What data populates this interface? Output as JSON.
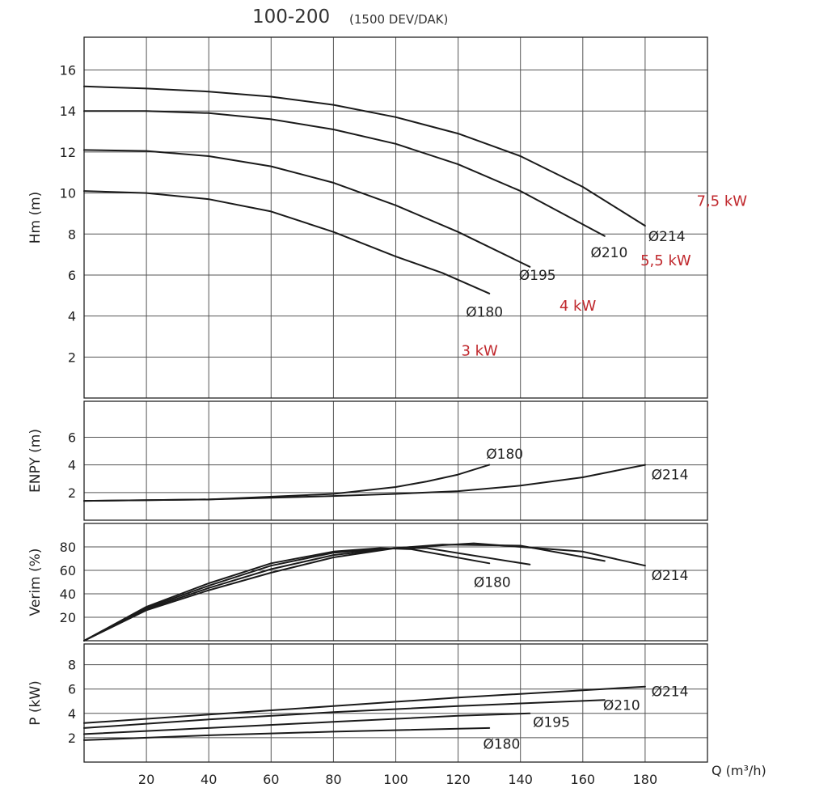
{
  "chart_data": {
    "type": "line",
    "title": "100-200",
    "subtitle": "(1500 DEV/DAK)",
    "xlabel": "Q (m³/h)",
    "xlim": [
      0,
      200
    ],
    "xticks": [
      20,
      40,
      60,
      80,
      100,
      120,
      140,
      160,
      180
    ],
    "panels": [
      {
        "id": "hm",
        "ylabel": "Hm (m)",
        "ylim": [
          0,
          17.6
        ],
        "yticks": [
          2,
          4,
          6,
          8,
          10,
          12,
          14,
          16
        ],
        "series": [
          {
            "name": "Ø180",
            "x": [
              0,
              20,
              40,
              60,
              80,
              100,
              115,
              130
            ],
            "y": [
              10.1,
              10.0,
              9.7,
              9.1,
              8.1,
              6.9,
              6.1,
              5.1
            ]
          },
          {
            "name": "Ø195",
            "x": [
              0,
              20,
              40,
              60,
              80,
              100,
              120,
              143
            ],
            "y": [
              12.1,
              12.05,
              11.8,
              11.3,
              10.5,
              9.4,
              8.1,
              6.4
            ]
          },
          {
            "name": "Ø210",
            "x": [
              0,
              20,
              40,
              60,
              80,
              100,
              120,
              140,
              167
            ],
            "y": [
              14.0,
              14.0,
              13.9,
              13.6,
              13.1,
              12.4,
              11.4,
              10.1,
              7.9
            ]
          },
          {
            "name": "Ø214",
            "x": [
              0,
              20,
              40,
              60,
              80,
              100,
              120,
              140,
              160,
              180
            ],
            "y": [
              15.2,
              15.1,
              14.95,
              14.7,
              14.3,
              13.7,
              12.9,
              11.8,
              10.3,
              8.4
            ]
          }
        ],
        "labels": [
          {
            "text": "Ø180",
            "x": 122.5,
            "y": 4.2
          },
          {
            "text": "Ø195",
            "x": 139.5,
            "y": 6.0
          },
          {
            "text": "Ø210",
            "x": 162.5,
            "y": 7.1
          },
          {
            "text": "Ø214",
            "x": 181,
            "y": 7.9
          }
        ],
        "power_labels": [
          {
            "text": "3 kW",
            "x": 121,
            "y": 2.3
          },
          {
            "text": "4 kW",
            "x": 152.5,
            "y": 4.5
          },
          {
            "text": "5,5 kW",
            "x": 178.5,
            "y": 6.7
          },
          {
            "text": "7,5 kW",
            "x": 196.5,
            "y": 9.6
          }
        ]
      },
      {
        "id": "enpy",
        "ylabel": "ENPY (m)",
        "ylim": [
          0,
          8.6
        ],
        "yticks": [
          2,
          4,
          6
        ],
        "series": [
          {
            "name": "Ø180",
            "x": [
              0,
              40,
              80,
              100,
              110,
              120,
              130
            ],
            "y": [
              1.4,
              1.5,
              1.9,
              2.4,
              2.8,
              3.3,
              4.0
            ]
          },
          {
            "name": "Ø214",
            "x": [
              0,
              40,
              80,
              100,
              120,
              140,
              160,
              180
            ],
            "y": [
              1.4,
              1.5,
              1.75,
              1.9,
              2.1,
              2.5,
              3.1,
              4.0
            ]
          }
        ],
        "labels": [
          {
            "text": "Ø180",
            "x": 129,
            "y": 4.8
          },
          {
            "text": "Ø214",
            "x": 182,
            "y": 3.3
          }
        ]
      },
      {
        "id": "verim",
        "ylabel": "Verim (%)",
        "ylim": [
          0,
          100
        ],
        "yticks": [
          20,
          40,
          60,
          80
        ],
        "series": [
          {
            "name": "Ø180",
            "x": [
              0,
              20,
              40,
              60,
              80,
              95,
              105,
              130
            ],
            "y": [
              0,
              29,
              49,
              66,
              76,
              79,
              78,
              66
            ]
          },
          {
            "name": "Ø195",
            "x": [
              0,
              20,
              40,
              60,
              80,
              100,
              110,
              143
            ],
            "y": [
              0,
              28,
              47,
              64,
              75,
              79,
              79,
              65
            ]
          },
          {
            "name": "Ø210",
            "x": [
              0,
              20,
              40,
              60,
              80,
              100,
              115,
              140,
              167
            ],
            "y": [
              0,
              27,
              45,
              61,
              73,
              79,
              82,
              81,
              68
            ]
          },
          {
            "name": "Ø214",
            "x": [
              0,
              20,
              40,
              60,
              80,
              100,
              125,
              160,
              180
            ],
            "y": [
              0,
              26,
              43,
              58,
              71,
              79,
              83,
              76,
              64
            ]
          }
        ],
        "labels": [
          {
            "text": "Ø180",
            "x": 125,
            "y": 50
          },
          {
            "text": "Ø214",
            "x": 182,
            "y": 56
          }
        ]
      },
      {
        "id": "p",
        "ylabel": "P (kW)",
        "ylim": [
          0,
          9.7
        ],
        "yticks": [
          2,
          4,
          6,
          8
        ],
        "series": [
          {
            "name": "Ø180",
            "x": [
              0,
              40,
              80,
              130
            ],
            "y": [
              1.8,
              2.2,
              2.5,
              2.8
            ]
          },
          {
            "name": "Ø195",
            "x": [
              0,
              40,
              80,
              120,
              143
            ],
            "y": [
              2.3,
              2.8,
              3.3,
              3.8,
              4.0
            ]
          },
          {
            "name": "Ø210",
            "x": [
              0,
              40,
              80,
              120,
              167
            ],
            "y": [
              2.8,
              3.5,
              4.1,
              4.6,
              5.1
            ]
          },
          {
            "name": "Ø214",
            "x": [
              0,
              40,
              80,
              120,
              160,
              180
            ],
            "y": [
              3.2,
              3.9,
              4.6,
              5.3,
              5.9,
              6.2
            ]
          }
        ],
        "labels": [
          {
            "text": "Ø180",
            "x": 128,
            "y": 1.5
          },
          {
            "text": "Ø195",
            "x": 144,
            "y": 3.3
          },
          {
            "text": "Ø210",
            "x": 166.5,
            "y": 4.7
          },
          {
            "text": "Ø214",
            "x": 182,
            "y": 5.8
          }
        ]
      }
    ]
  }
}
